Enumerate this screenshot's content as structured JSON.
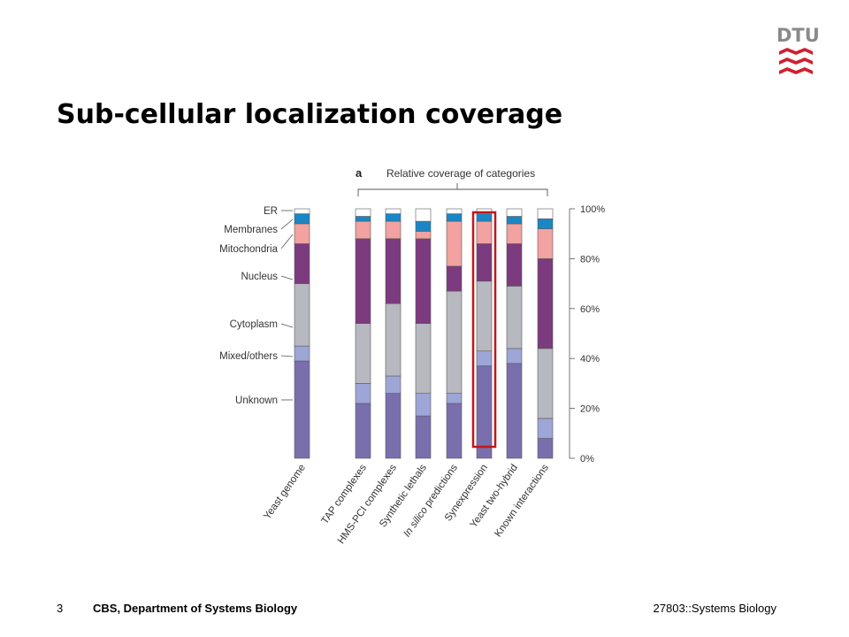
{
  "slide": {
    "title": "Sub-cellular localization coverage",
    "logo_text": "DTU",
    "footer": {
      "page_number": "3",
      "organization": "CBS, Department of Systems Biology",
      "course": "27803::Systems Biology"
    }
  },
  "colors": {
    "ER": "#ffffff",
    "Membranes": "#1a86c4",
    "Mitochondria": "#f2a2a0",
    "Nucleus": "#7b3b7e",
    "Cytoplasm": "#b7b8c0",
    "Mixed/others": "#9da6d6",
    "Unknown": "#7a6fad",
    "highlight": "#c0171c",
    "logo_red": "#d0202f"
  },
  "chart_data": {
    "type": "bar",
    "stacked": true,
    "panel_label": "a",
    "bracket_label": "Relative coverage of categories",
    "categories": [
      "Yeast genome",
      "TAP complexes",
      "HMS-PCI complexes",
      "Synthetic lethals",
      "In silico predictions",
      "Synexpression",
      "Yeast two-hybrid",
      "Known interactions"
    ],
    "yticks": [
      "0%",
      "20%",
      "40%",
      "60%",
      "80%",
      "100%"
    ],
    "ylim": [
      0,
      100
    ],
    "highlighted_category": "Synexpression",
    "series": [
      {
        "name": "Unknown",
        "values": [
          39,
          22,
          26,
          17,
          22,
          37,
          38,
          8
        ]
      },
      {
        "name": "Mixed/others",
        "values": [
          6,
          8,
          7,
          9,
          4,
          6,
          6,
          8
        ]
      },
      {
        "name": "Cytoplasm",
        "values": [
          25,
          24,
          29,
          28,
          41,
          28,
          25,
          28
        ]
      },
      {
        "name": "Nucleus",
        "values": [
          16,
          34,
          26,
          34,
          10,
          15,
          17,
          36
        ]
      },
      {
        "name": "Mitochondria",
        "values": [
          8,
          7,
          7,
          3,
          18,
          9,
          8,
          12
        ]
      },
      {
        "name": "Membranes",
        "values": [
          4,
          2,
          3,
          4,
          3,
          3,
          3,
          4
        ]
      },
      {
        "name": "ER",
        "values": [
          2,
          3,
          2,
          5,
          2,
          2,
          3,
          4
        ]
      }
    ]
  }
}
